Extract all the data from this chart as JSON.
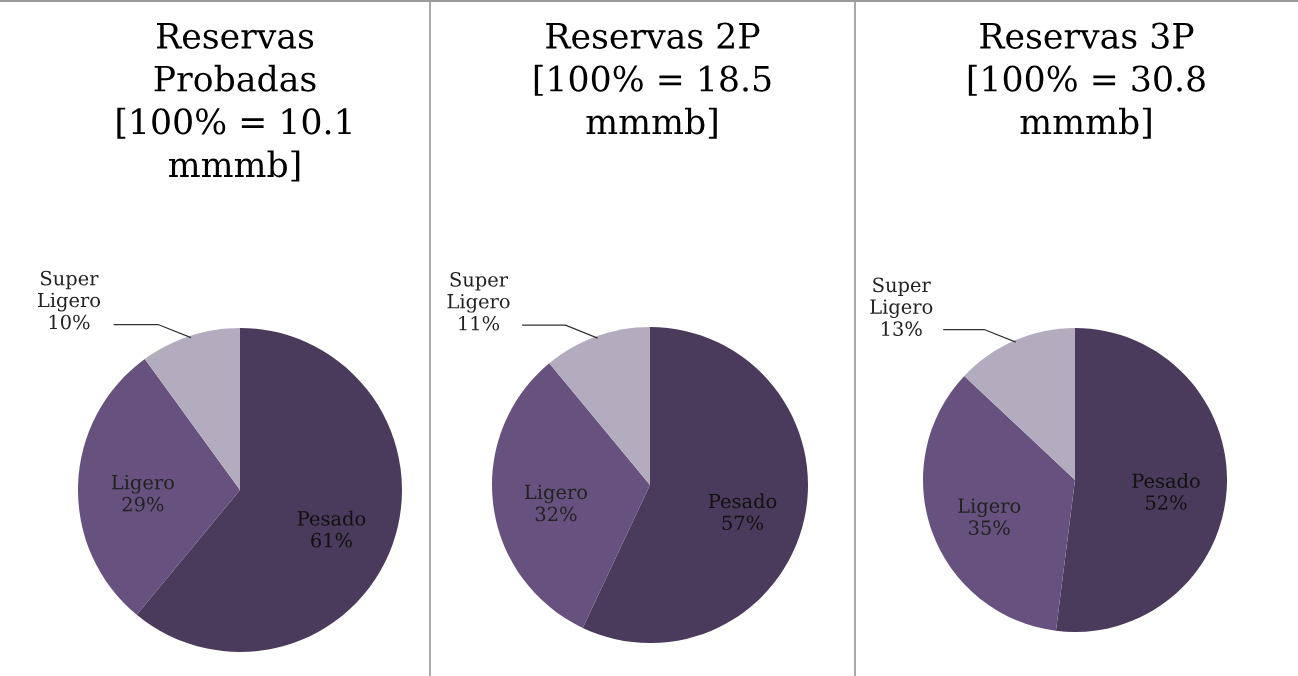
{
  "chart_data": [
    {
      "type": "pie",
      "title": "Reservas\nProbadas\n[100% = 10.1\nmmmb]",
      "categories": [
        "Pesado",
        "Ligero",
        "Super Ligero"
      ],
      "values": [
        61,
        29,
        10
      ],
      "value_labels": [
        "61%",
        "29%",
        "10%"
      ],
      "colors": [
        "#4a3a5c",
        "#67517f",
        "#b3acbf"
      ]
    },
    {
      "type": "pie",
      "title": "Reservas 2P\n[100% = 18.5\nmmmb]",
      "categories": [
        "Pesado",
        "Ligero",
        "Super Ligero"
      ],
      "values": [
        57,
        32,
        11
      ],
      "value_labels": [
        "57%",
        "32%",
        "11%"
      ],
      "colors": [
        "#4a3a5c",
        "#67517f",
        "#b3acbf"
      ]
    },
    {
      "type": "pie",
      "title": "Reservas 3P\n[100% = 30.8\nmmmb]",
      "categories": [
        "Pesado",
        "Ligero",
        "Super Ligero"
      ],
      "values": [
        52,
        35,
        13
      ],
      "value_labels": [
        "52%",
        "35%",
        "13%"
      ],
      "colors": [
        "#4a3a5c",
        "#67517f",
        "#b3acbf"
      ]
    }
  ]
}
